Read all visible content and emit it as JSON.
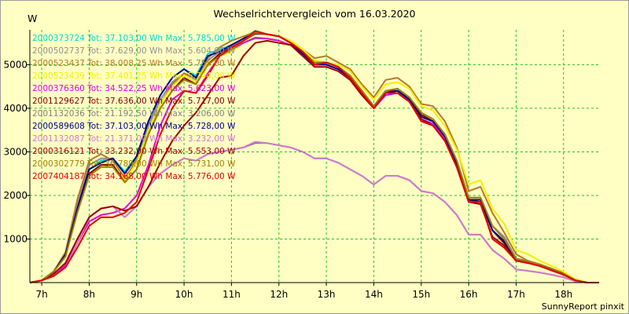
{
  "chart_data": {
    "type": "line",
    "title": "Wechselrichtervergleich vom 16.03.2020",
    "ylabel": "W",
    "footer": "SunnyReport pinxit",
    "ylim": [
      0,
      5800
    ],
    "yticks": [
      1000,
      2000,
      3000,
      4000,
      5000
    ],
    "xlim": [
      6.75,
      18.75
    ],
    "xticks": [
      7,
      8,
      9,
      10,
      11,
      12,
      13,
      14,
      15,
      16,
      17,
      18
    ],
    "xtick_labels": [
      "7h",
      "8h",
      "9h",
      "10h",
      "11h",
      "12h",
      "13h",
      "14h",
      "15h",
      "16h",
      "17h",
      "18h"
    ],
    "grid": true,
    "legend_position": "top-left",
    "x": [
      6.75,
      7.0,
      7.25,
      7.5,
      7.75,
      8.0,
      8.25,
      8.5,
      8.75,
      9.0,
      9.25,
      9.5,
      9.75,
      10.0,
      10.25,
      10.5,
      10.75,
      11.0,
      11.25,
      11.5,
      11.75,
      12.0,
      12.25,
      12.5,
      12.75,
      13.0,
      13.25,
      13.5,
      13.75,
      14.0,
      14.25,
      14.5,
      14.75,
      15.0,
      15.25,
      15.5,
      15.75,
      16.0,
      16.25,
      16.5,
      16.75,
      17.0,
      17.25,
      17.5,
      17.75,
      18.0,
      18.25,
      18.5,
      18.75
    ],
    "series": [
      {
        "name": "2000373724",
        "label": "2000373724 Tot: 37.103,00 Wh Max: 5.785,00 W",
        "color": "#00D8D8",
        "values": [
          0,
          50,
          250,
          650,
          1700,
          2600,
          2800,
          2850,
          2550,
          2900,
          3700,
          4300,
          4700,
          4900,
          4750,
          5250,
          5350,
          5450,
          5600,
          5780,
          5700,
          5650,
          5500,
          5250,
          5000,
          5000,
          4900,
          4700,
          4400,
          4000,
          4350,
          4400,
          4200,
          3800,
          3700,
          3350,
          2750,
          1900,
          1900,
          1200,
          950,
          500,
          450,
          400,
          300,
          200,
          50,
          0,
          0
        ]
      },
      {
        "name": "2000502737",
        "label": "2000502737 Tot: 37.629,00 Wh Max: 5.604,00 W",
        "color": "#909090",
        "values": [
          0,
          50,
          250,
          650,
          1800,
          2700,
          2850,
          2850,
          2500,
          2850,
          3600,
          4200,
          4600,
          4800,
          4650,
          5100,
          5300,
          5400,
          5500,
          5600,
          5600,
          5550,
          5450,
          5250,
          5050,
          5050,
          4950,
          4750,
          4400,
          4050,
          4400,
          4450,
          4250,
          3850,
          3750,
          3400,
          2800,
          1950,
          1950,
          1300,
          1050,
          550,
          500,
          420,
          320,
          200,
          50,
          0,
          0
        ]
      },
      {
        "name": "2000523437",
        "label": "2000523437 Tot: 38.008,25 Wh Max: 5.755,00 W",
        "color": "#B87828",
        "values": [
          0,
          50,
          250,
          700,
          1900,
          2800,
          2950,
          2800,
          2400,
          2800,
          3500,
          4100,
          4550,
          4800,
          4700,
          5150,
          5400,
          5550,
          5650,
          5750,
          5700,
          5650,
          5550,
          5350,
          5150,
          5200,
          5050,
          4900,
          4550,
          4250,
          4650,
          4700,
          4500,
          4100,
          4050,
          3700,
          3100,
          2100,
          2200,
          1600,
          1150,
          650,
          500,
          420,
          320,
          220,
          60,
          0,
          0
        ]
      },
      {
        "name": "2000523439",
        "label": "2000523439 Tot: 37.401,25 Wh Max: 5.744,00 W",
        "color": "#F0F000",
        "values": [
          0,
          50,
          250,
          650,
          1700,
          2600,
          2750,
          2700,
          2350,
          2750,
          3500,
          4100,
          4500,
          4750,
          4600,
          5050,
          5200,
          5300,
          5500,
          5740,
          5700,
          5650,
          5550,
          5350,
          5100,
          5050,
          5000,
          4850,
          4500,
          4200,
          4550,
          4600,
          4450,
          4050,
          3950,
          3600,
          3050,
          2250,
          2350,
          1700,
          1350,
          750,
          650,
          500,
          380,
          250,
          80,
          0,
          0
        ]
      },
      {
        "name": "2000376360",
        "label": "2000376360 Tot: 34.522,25 Wh Max: 5.623,00 W",
        "color": "#E000E0",
        "values": [
          0,
          50,
          150,
          400,
          900,
          1400,
          1550,
          1600,
          1700,
          2000,
          2700,
          3600,
          4200,
          4400,
          4350,
          4800,
          5200,
          5350,
          5500,
          5620,
          5600,
          5550,
          5450,
          5250,
          5000,
          5000,
          4900,
          4700,
          4350,
          4000,
          4300,
          4350,
          4150,
          3750,
          3650,
          3300,
          2700,
          1850,
          1850,
          1200,
          950,
          550,
          450,
          400,
          300,
          200,
          50,
          0,
          0
        ]
      },
      {
        "name": "2001129627",
        "label": "2001129627 Tot: 37.636,00 Wh Max: 5.717,00 W",
        "color": "#800000",
        "values": [
          0,
          50,
          250,
          600,
          1650,
          2500,
          2700,
          2700,
          2300,
          2600,
          3400,
          4000,
          4400,
          4700,
          4550,
          5000,
          5250,
          5400,
          5550,
          5710,
          5700,
          5650,
          5500,
          5300,
          5050,
          5050,
          4950,
          4750,
          4400,
          4050,
          4400,
          4400,
          4250,
          3850,
          3700,
          3350,
          2750,
          1900,
          1850,
          1200,
          900,
          500,
          450,
          400,
          300,
          200,
          50,
          0,
          0
        ]
      },
      {
        "name": "2001132036",
        "label": "2001132036 Tot: 21.192,50 Wh Max: 3.206,00 W",
        "color": "#808080",
        "values": [
          0,
          50,
          150,
          350,
          900,
          1500,
          1700,
          1750,
          1500,
          1750,
          2200,
          2500,
          2700,
          2850,
          2800,
          2950,
          3000,
          3050,
          3100,
          3200,
          3200,
          3150,
          3100,
          3000,
          2850,
          2850,
          2750,
          2600,
          2450,
          2250,
          2450,
          2450,
          2350,
          2100,
          2050,
          1850,
          1550,
          1100,
          1100,
          750,
          550,
          300,
          270,
          230,
          180,
          120,
          30,
          0,
          0
        ]
      },
      {
        "name": "2000589608",
        "label": "2000589608 Tot: 37.103,00 Wh Max: 5.728,00 W",
        "color": "#000090",
        "values": [
          0,
          50,
          250,
          650,
          1700,
          2600,
          2750,
          2850,
          2500,
          2900,
          3700,
          4300,
          4700,
          4900,
          4700,
          5200,
          5300,
          5450,
          5600,
          5720,
          5700,
          5650,
          5500,
          5250,
          5000,
          5000,
          4900,
          4700,
          4400,
          4000,
          4350,
          4400,
          4200,
          3800,
          3700,
          3350,
          2750,
          1900,
          1900,
          1200,
          950,
          500,
          450,
          400,
          300,
          200,
          50,
          0,
          0
        ]
      },
      {
        "name": "2001132087",
        "label": "2001132087 Tot: 21.371,00 Wh Max: 3.232,00 W",
        "color": "#D078D0",
        "values": [
          0,
          50,
          150,
          350,
          900,
          1500,
          1700,
          1750,
          1500,
          1750,
          2200,
          2500,
          2700,
          2850,
          2800,
          2950,
          3000,
          3050,
          3100,
          3230,
          3200,
          3150,
          3100,
          3000,
          2850,
          2850,
          2750,
          2600,
          2450,
          2250,
          2450,
          2450,
          2350,
          2100,
          2050,
          1850,
          1550,
          1100,
          1100,
          750,
          550,
          300,
          270,
          230,
          180,
          120,
          30,
          0,
          0
        ]
      },
      {
        "name": "2000316121",
        "label": "2000316121 Tot: 33.232,00 Wh Max: 5.553,00 W",
        "color": "#A00000",
        "values": [
          0,
          50,
          200,
          450,
          1000,
          1500,
          1700,
          1750,
          1650,
          1750,
          2200,
          2750,
          3250,
          3600,
          3900,
          4300,
          4700,
          4750,
          5200,
          5500,
          5550,
          5500,
          5450,
          5200,
          4950,
          4950,
          4850,
          4650,
          4300,
          4000,
          4350,
          4350,
          4150,
          3750,
          3600,
          3250,
          2650,
          1850,
          1800,
          1050,
          850,
          500,
          450,
          380,
          280,
          180,
          50,
          0,
          0
        ]
      },
      {
        "name": "2000302779",
        "label": "2000302779 Tot: 36.789,00 Wh Max: 5.731,00 W",
        "color": "#A08000",
        "values": [
          0,
          50,
          250,
          600,
          1600,
          2450,
          2650,
          2650,
          2300,
          2600,
          3400,
          4000,
          4400,
          4650,
          4550,
          5000,
          5200,
          5350,
          5550,
          5730,
          5700,
          5650,
          5500,
          5300,
          5050,
          5050,
          4950,
          4750,
          4400,
          4050,
          4400,
          4450,
          4250,
          3900,
          3750,
          3400,
          2800,
          1950,
          1950,
          1300,
          1000,
          550,
          480,
          400,
          300,
          200,
          50,
          0,
          0
        ]
      },
      {
        "name": "2007404187",
        "label": "2007404187 Tot: 34.168,00 Wh Max: 5.776,00 W",
        "color": "#E00000",
        "values": [
          0,
          50,
          150,
          350,
          800,
          1300,
          1500,
          1500,
          1600,
          1850,
          2600,
          3400,
          4000,
          4400,
          4350,
          4750,
          5200,
          5400,
          5550,
          5770,
          5700,
          5650,
          5500,
          5300,
          5000,
          5050,
          4950,
          4700,
          4350,
          4000,
          4350,
          4350,
          4150,
          3700,
          3600,
          3250,
          2650,
          1850,
          1850,
          1000,
          800,
          500,
          450,
          380,
          280,
          180,
          50,
          0,
          0
        ]
      }
    ]
  }
}
